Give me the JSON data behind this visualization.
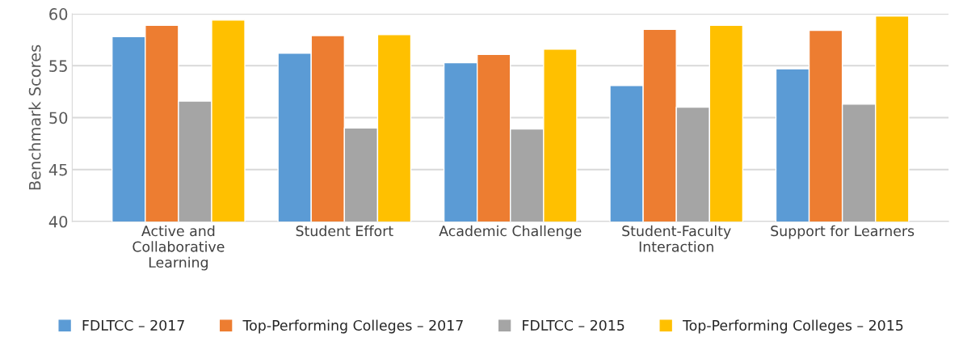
{
  "chart_data": {
    "type": "bar",
    "ylabel": "Benchmark Scores",
    "categories": [
      "Active and\nCollaborative\nLearning",
      "Student Effort",
      "Academic Challenge",
      "Student-Faculty\nInteraction",
      "Support for Learners"
    ],
    "series": [
      {
        "name": "FDLTCC – 2017",
        "color": "#5b9bd5",
        "values": [
          57.8,
          56.2,
          55.3,
          53.1,
          54.7
        ]
      },
      {
        "name": "Top-Performing Colleges – 2017",
        "color": "#ed7d31",
        "values": [
          58.9,
          57.9,
          56.1,
          58.5,
          58.4
        ]
      },
      {
        "name": "FDLTCC – 2015",
        "color": "#a5a5a5",
        "values": [
          51.6,
          49.0,
          48.9,
          51.0,
          51.3
        ]
      },
      {
        "name": "Top-Performing Colleges – 2015",
        "color": "#ffc000",
        "values": [
          59.4,
          58.0,
          56.6,
          58.9,
          59.8
        ]
      }
    ],
    "ylim": [
      40,
      60
    ],
    "yticks": [
      40,
      45,
      50,
      55,
      60
    ],
    "grid": "y",
    "legend": "bottom"
  }
}
